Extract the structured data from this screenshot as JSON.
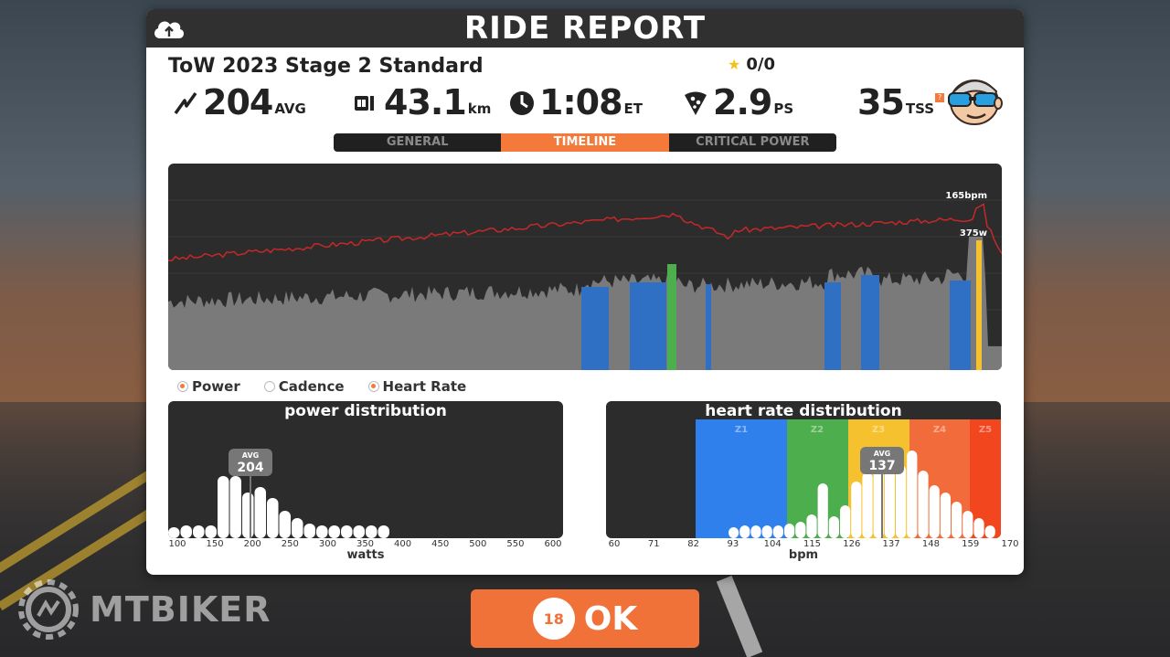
{
  "header": {
    "title": "RIDE REPORT"
  },
  "ride": {
    "name": "ToW 2023 Stage 2 Standard",
    "stars": "0/0"
  },
  "stats": {
    "power": {
      "value": "204",
      "unit": "AVG"
    },
    "distance": {
      "value": "43.1",
      "unit": "km"
    },
    "time": {
      "value": "1:08",
      "unit": "ET"
    },
    "pizza": {
      "value": "2.9",
      "unit": "PS"
    },
    "tss": {
      "value": "35",
      "unit": "TSS",
      "badge": "?"
    }
  },
  "tabs": [
    {
      "label": "GENERAL",
      "active": false
    },
    {
      "label": "TIMELINE",
      "active": true
    },
    {
      "label": "CRITICAL POWER",
      "active": false
    }
  ],
  "timeline": {
    "hr_peak_label": "165bpm",
    "power_peak_label": "375w"
  },
  "legend": [
    {
      "label": "Power",
      "on": true
    },
    {
      "label": "Cadence",
      "on": false
    },
    {
      "label": "Heart Rate",
      "on": true
    }
  ],
  "power_dist": {
    "title": "power distribution",
    "avg_label": "AVG",
    "avg_value": "204",
    "axis_title": "watts",
    "ticks": [
      "100",
      "150",
      "200",
      "250",
      "300",
      "350",
      "400",
      "450",
      "500",
      "550",
      "600"
    ]
  },
  "hr_dist": {
    "title": "heart rate distribution",
    "avg_label": "AVG",
    "avg_value": "137",
    "axis_title": "bpm",
    "ticks": [
      "60",
      "71",
      "82",
      "93",
      "104",
      "115",
      "126",
      "137",
      "148",
      "159",
      "170"
    ],
    "zones": [
      "Z1",
      "Z2",
      "Z3",
      "Z4",
      "Z5"
    ]
  },
  "ok": {
    "countdown": "18",
    "label": "OK"
  },
  "watermark": {
    "text": "MTBIKER"
  },
  "colors": {
    "accent": "#f47a3c",
    "panel_dark": "#2c2c2c",
    "hr_line": "#c62828",
    "z1": "#2f80ed",
    "z2": "#4cae4c",
    "z3": "#f6c12f",
    "z4": "#f26b3a",
    "z5": "#f2461f"
  }
}
